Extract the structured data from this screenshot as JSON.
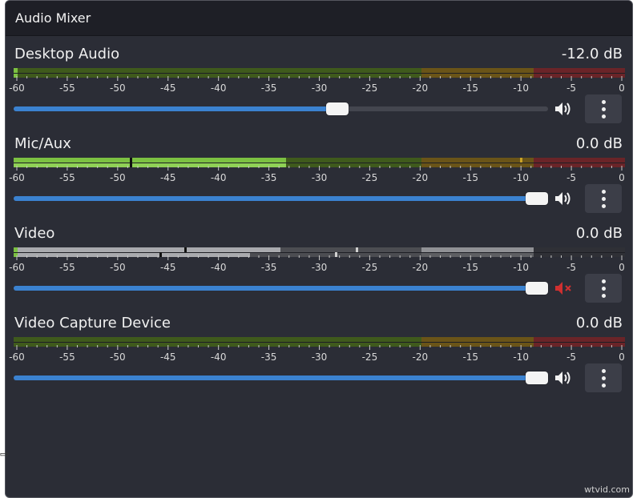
{
  "window": {
    "title": "Audio Mixer"
  },
  "scale_labels": [
    "-60",
    "-55",
    "-50",
    "-45",
    "-40",
    "-35",
    "-30",
    "-25",
    "-20",
    "-15",
    "-10",
    "-5",
    "0"
  ],
  "channels": [
    {
      "name": "Desktop Audio",
      "db": "-12.0 dB",
      "volume": 0.62,
      "muted": false,
      "meter_level_db": -60,
      "muted_display": false
    },
    {
      "name": "Mic/Aux",
      "db": "0.0 dB",
      "volume": 1.0,
      "muted": false,
      "meter_level_db": -33,
      "meter2_level_db": -34,
      "peak_db": -48,
      "peak2_db": -10
    },
    {
      "name": "Video",
      "db": "0.0 dB",
      "volume": 1.0,
      "muted": true,
      "meter_level_db": -34,
      "meter2_level_db": -27,
      "peak_db": -46,
      "peak2_db": -43
    },
    {
      "name": "Video Capture Device",
      "db": "0.0 dB",
      "volume": 1.0,
      "muted": false,
      "meter_level_db": -60
    }
  ],
  "colors": {
    "accent": "#3b82d0",
    "meter_green_active": "#7cc142",
    "meter_green_idle": "#3f5a1c",
    "meter_yellow_idle": "#6a5418",
    "meter_red_idle": "#6a2428",
    "muted_icon": "#d03030"
  },
  "icons": {
    "speaker": "speaker-icon",
    "speaker_muted": "speaker-muted-icon",
    "menu": "kebab-menu-icon"
  },
  "watermark": "wtvid.com"
}
